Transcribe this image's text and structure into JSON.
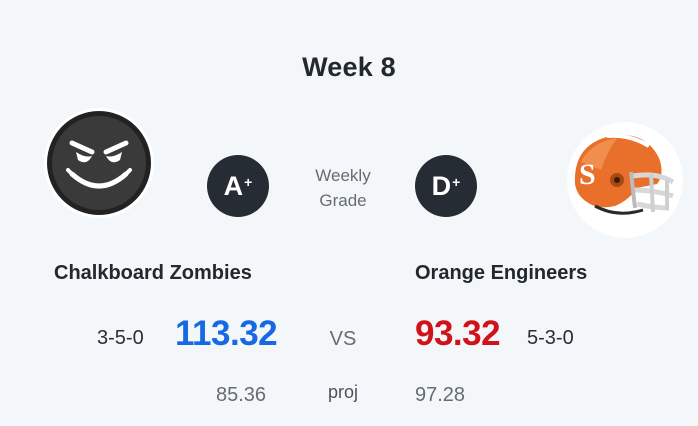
{
  "matchup": {
    "week_title": "Week 8",
    "weekly_grade_line1": "Weekly",
    "weekly_grade_line2": "Grade",
    "vs_label": "VS",
    "proj_label": "proj"
  },
  "home": {
    "name": "Chalkboard Zombies",
    "record": "3-5-0",
    "score": "113.32",
    "projected": "85.36",
    "grade_letter": "A",
    "grade_modifier": "+",
    "avatar_icon": "evil-smiley-icon",
    "score_color": "#1668e3"
  },
  "away": {
    "name": "Orange Engineers",
    "record": "5-3-0",
    "score": "93.32",
    "projected": "97.28",
    "grade_letter": "D",
    "grade_modifier": "+",
    "avatar_icon": "football-helmet-icon",
    "score_color": "#d0121b"
  }
}
